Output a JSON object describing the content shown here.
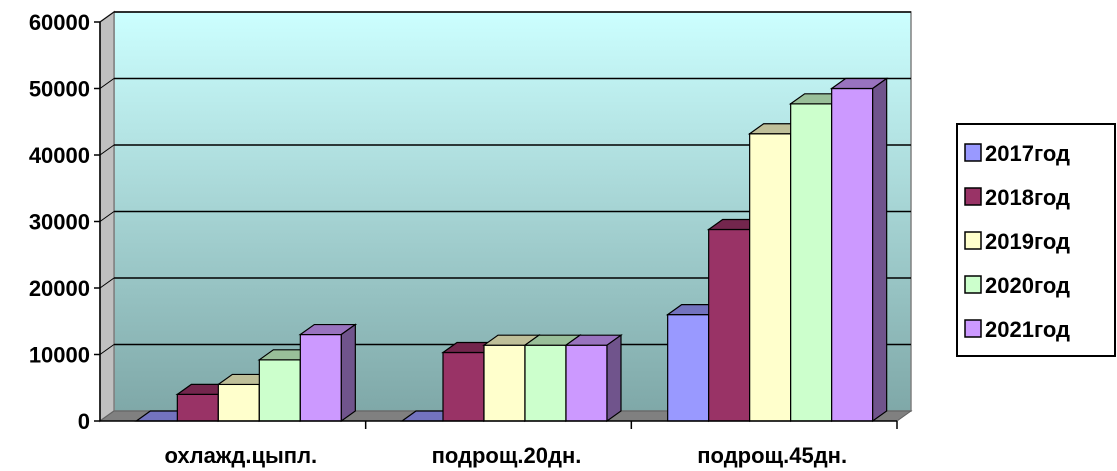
{
  "chart_data": {
    "type": "bar",
    "style": "3d-clustered-column",
    "categories": [
      "охлажд.цыпл.",
      "подрощ.20дн.",
      "подрощ.45дн."
    ],
    "series": [
      {
        "name": "2017год",
        "values": [
          0,
          0,
          16000
        ],
        "color": "#9999FF"
      },
      {
        "name": "2018год",
        "values": [
          4000,
          10300,
          28800
        ],
        "color": "#993366"
      },
      {
        "name": "2019год",
        "values": [
          5500,
          11400,
          43200
        ],
        "color": "#FFFFCC"
      },
      {
        "name": "2020год",
        "values": [
          9200,
          11400,
          47700
        ],
        "color": "#CCFFCC"
      },
      {
        "name": "2021год",
        "values": [
          13000,
          11400,
          50000
        ],
        "color": "#CC99FF"
      }
    ],
    "yticks": [
      "0",
      "10000",
      "20000",
      "30000",
      "40000",
      "50000",
      "60000"
    ],
    "ylim": [
      0,
      60000
    ],
    "grid": true,
    "legend": "right",
    "wall_gradient": [
      "#CCFFFF",
      "#7FA8A8"
    ]
  }
}
